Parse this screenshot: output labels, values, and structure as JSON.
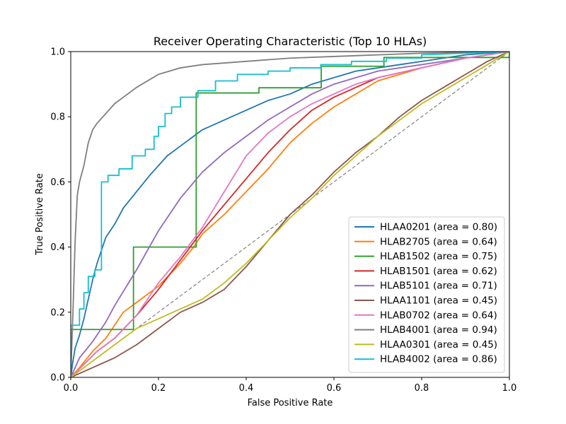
{
  "chart_data": {
    "type": "line",
    "title": "Receiver Operating Characteristic (Top 10 HLAs)",
    "xlabel": "False Positive Rate",
    "ylabel": "True Positive Rate",
    "xlim": [
      0.0,
      1.0
    ],
    "ylim": [
      0.0,
      1.0
    ],
    "xticks": [
      "0.0",
      "0.2",
      "0.4",
      "0.6",
      "0.8",
      "1.0"
    ],
    "yticks": [
      "0.0",
      "0.2",
      "0.4",
      "0.6",
      "0.8",
      "1.0"
    ],
    "grid": false,
    "legend_position": "lower-right",
    "reference_line": {
      "x": [
        0,
        1
      ],
      "y": [
        0,
        1
      ],
      "style": "dashed",
      "color": "#808080"
    },
    "series": [
      {
        "name": "HLAA0201",
        "label": "HLAA0201 (area = 0.80)",
        "color": "#1f77b4",
        "step": false,
        "x": [
          0,
          0.005,
          0.01,
          0.02,
          0.03,
          0.04,
          0.05,
          0.06,
          0.07,
          0.08,
          0.1,
          0.12,
          0.15,
          0.18,
          0.2,
          0.22,
          0.25,
          0.28,
          0.3,
          0.35,
          0.4,
          0.45,
          0.5,
          0.55,
          0.6,
          0.65,
          0.7,
          0.75,
          0.8,
          0.9,
          1.0
        ],
        "y": [
          0,
          0.05,
          0.09,
          0.13,
          0.18,
          0.24,
          0.3,
          0.35,
          0.39,
          0.43,
          0.47,
          0.52,
          0.57,
          0.62,
          0.65,
          0.68,
          0.71,
          0.74,
          0.76,
          0.79,
          0.82,
          0.85,
          0.87,
          0.9,
          0.92,
          0.94,
          0.95,
          0.96,
          0.97,
          0.99,
          1.0
        ]
      },
      {
        "name": "HLAB2705",
        "label": "HLAB2705 (area = 0.64)",
        "color": "#ff7f0e",
        "step": false,
        "x": [
          0,
          0.02,
          0.05,
          0.08,
          0.1,
          0.12,
          0.15,
          0.2,
          0.25,
          0.28,
          0.3,
          0.35,
          0.4,
          0.45,
          0.5,
          0.55,
          0.6,
          0.65,
          0.7,
          0.8,
          0.9,
          1.0
        ],
        "y": [
          0,
          0.03,
          0.08,
          0.12,
          0.16,
          0.2,
          0.23,
          0.28,
          0.35,
          0.4,
          0.44,
          0.5,
          0.57,
          0.64,
          0.72,
          0.78,
          0.83,
          0.87,
          0.91,
          0.95,
          0.98,
          1.0
        ]
      },
      {
        "name": "HLAB1502",
        "label": "HLAB1502 (area = 0.75)",
        "color": "#2ca02c",
        "step": true,
        "x": [
          0,
          0,
          0.143,
          0.143,
          0.286,
          0.286,
          0.429,
          0.429,
          0.571,
          0.571,
          0.714,
          0.714,
          1.0,
          1.0
        ],
        "y": [
          0,
          0.147,
          0.147,
          0.4,
          0.4,
          0.873,
          0.873,
          0.889,
          0.889,
          0.955,
          0.955,
          0.982,
          0.982,
          1.0
        ]
      },
      {
        "name": "HLAB1501",
        "label": "HLAB1501 (area = 0.62)",
        "color": "#d62728",
        "step": false,
        "x": [
          0,
          0.03,
          0.06,
          0.1,
          0.15,
          0.2,
          0.25,
          0.3,
          0.35,
          0.4,
          0.45,
          0.5,
          0.55,
          0.6,
          0.65,
          0.7,
          0.8,
          0.9,
          1.0
        ],
        "y": [
          0,
          0.04,
          0.08,
          0.12,
          0.19,
          0.27,
          0.36,
          0.45,
          0.53,
          0.61,
          0.69,
          0.76,
          0.82,
          0.86,
          0.89,
          0.92,
          0.95,
          0.98,
          1.0
        ]
      },
      {
        "name": "HLAB5101",
        "label": "HLAB5101 (area = 0.71)",
        "color": "#9467bd",
        "step": false,
        "x": [
          0,
          0.02,
          0.05,
          0.08,
          0.1,
          0.15,
          0.2,
          0.25,
          0.3,
          0.35,
          0.4,
          0.45,
          0.5,
          0.55,
          0.6,
          0.7,
          0.8,
          0.9,
          1.0
        ],
        "y": [
          0,
          0.06,
          0.11,
          0.17,
          0.22,
          0.33,
          0.45,
          0.55,
          0.63,
          0.69,
          0.74,
          0.79,
          0.83,
          0.87,
          0.9,
          0.94,
          0.96,
          0.98,
          1.0
        ]
      },
      {
        "name": "HLAA1101",
        "label": "HLAA1101 (area = 0.45)",
        "color": "#8c564b",
        "step": false,
        "x": [
          0,
          0.05,
          0.1,
          0.15,
          0.2,
          0.25,
          0.3,
          0.35,
          0.4,
          0.45,
          0.5,
          0.55,
          0.6,
          0.65,
          0.7,
          0.75,
          0.8,
          0.85,
          0.9,
          0.95,
          1.0
        ],
        "y": [
          0,
          0.03,
          0.06,
          0.1,
          0.15,
          0.2,
          0.23,
          0.27,
          0.34,
          0.42,
          0.5,
          0.56,
          0.63,
          0.69,
          0.74,
          0.8,
          0.85,
          0.89,
          0.93,
          0.97,
          1.0
        ]
      },
      {
        "name": "HLAB0702",
        "label": "HLAB0702 (area = 0.64)",
        "color": "#e377c2",
        "step": false,
        "x": [
          0,
          0.03,
          0.06,
          0.1,
          0.15,
          0.2,
          0.25,
          0.3,
          0.35,
          0.4,
          0.45,
          0.5,
          0.55,
          0.6,
          0.65,
          0.7,
          0.8,
          0.9,
          1.0
        ],
        "y": [
          0,
          0.04,
          0.08,
          0.12,
          0.19,
          0.29,
          0.37,
          0.46,
          0.57,
          0.68,
          0.75,
          0.8,
          0.84,
          0.87,
          0.9,
          0.92,
          0.95,
          0.98,
          1.0
        ]
      },
      {
        "name": "HLAB4001",
        "label": "HLAB4001 (area = 0.94)",
        "color": "#7f7f7f",
        "step": false,
        "x": [
          0,
          0.005,
          0.01,
          0.015,
          0.02,
          0.03,
          0.04,
          0.05,
          0.06,
          0.08,
          0.1,
          0.12,
          0.15,
          0.2,
          0.25,
          0.3,
          0.4,
          0.5,
          0.6,
          0.7,
          0.8,
          0.9,
          1.0
        ],
        "y": [
          0,
          0.2,
          0.42,
          0.56,
          0.6,
          0.65,
          0.72,
          0.76,
          0.78,
          0.81,
          0.84,
          0.86,
          0.89,
          0.93,
          0.95,
          0.96,
          0.97,
          0.98,
          0.985,
          0.99,
          0.995,
          0.998,
          1.0
        ]
      },
      {
        "name": "HLAA0301",
        "label": "HLAA0301 (area = 0.45)",
        "color": "#bcbd22",
        "step": false,
        "x": [
          0,
          0.05,
          0.1,
          0.15,
          0.2,
          0.25,
          0.3,
          0.35,
          0.4,
          0.45,
          0.5,
          0.55,
          0.6,
          0.65,
          0.7,
          0.75,
          0.8,
          0.85,
          0.9,
          0.95,
          1.0
        ],
        "y": [
          0,
          0.05,
          0.1,
          0.15,
          0.18,
          0.21,
          0.24,
          0.29,
          0.35,
          0.42,
          0.49,
          0.55,
          0.62,
          0.68,
          0.74,
          0.79,
          0.84,
          0.88,
          0.92,
          0.96,
          1.0
        ]
      },
      {
        "name": "HLAB4002",
        "label": "HLAB4002 (area = 0.86)",
        "color": "#17becf",
        "step": true,
        "x": [
          0,
          0,
          0.02,
          0.02,
          0.03,
          0.03,
          0.04,
          0.04,
          0.055,
          0.055,
          0.07,
          0.07,
          0.085,
          0.085,
          0.11,
          0.11,
          0.14,
          0.14,
          0.17,
          0.17,
          0.19,
          0.19,
          0.2,
          0.2,
          0.215,
          0.215,
          0.23,
          0.23,
          0.25,
          0.25,
          0.29,
          0.29,
          0.33,
          0.33,
          0.38,
          0.38,
          0.45,
          0.45,
          0.5,
          0.5,
          0.57,
          0.57,
          0.64,
          0.64,
          0.72,
          0.72,
          0.8,
          0.8,
          1.0
        ],
        "y": [
          0,
          0.16,
          0.16,
          0.21,
          0.21,
          0.26,
          0.26,
          0.31,
          0.31,
          0.33,
          0.33,
          0.6,
          0.6,
          0.62,
          0.62,
          0.64,
          0.64,
          0.68,
          0.68,
          0.7,
          0.7,
          0.74,
          0.74,
          0.77,
          0.77,
          0.81,
          0.81,
          0.83,
          0.83,
          0.86,
          0.86,
          0.88,
          0.88,
          0.91,
          0.91,
          0.93,
          0.93,
          0.94,
          0.94,
          0.95,
          0.95,
          0.96,
          0.96,
          0.97,
          0.97,
          0.98,
          0.98,
          0.99,
          1.0
        ]
      }
    ]
  }
}
